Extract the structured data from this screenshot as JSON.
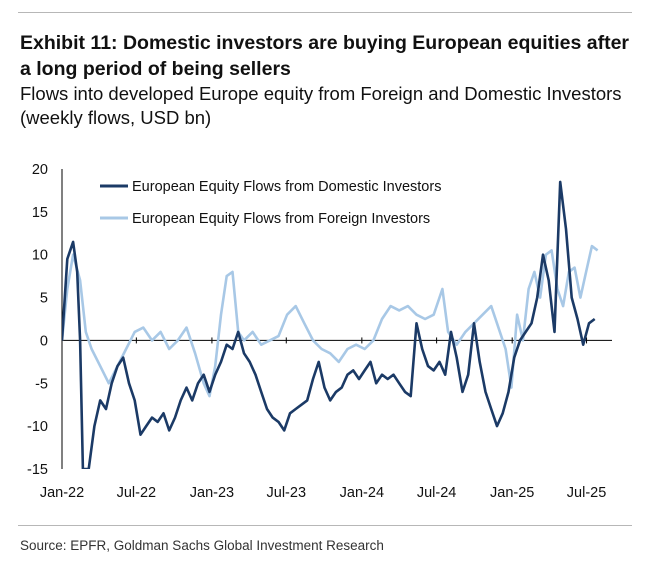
{
  "exhibit": {
    "title": "Exhibit 11: Domestic investors are buying European equities after a long period of being sellers",
    "subtitle": "Flows into developed Europe equity from Foreign and Domestic Investors (weekly flows, USD bn)",
    "source": "Source: EPFR, Goldman Sachs Global Investment Research"
  },
  "colors": {
    "domestic": "#1b3a66",
    "foreign": "#a8c8e6",
    "axis": "#000000",
    "rule": "#b7b7b7"
  },
  "chart_data": {
    "type": "line",
    "title": "",
    "xlabel": "",
    "ylabel": "",
    "ylim": [
      -15,
      20
    ],
    "yticks": [
      20,
      15,
      10,
      5,
      0,
      -5,
      -10,
      -15
    ],
    "xlim": [
      "2022-01-01",
      "2025-09-01"
    ],
    "xticks": [
      {
        "label": "Jan-22",
        "date": "2022-01-01"
      },
      {
        "label": "Jul-22",
        "date": "2022-07-01"
      },
      {
        "label": "Jan-23",
        "date": "2023-01-01"
      },
      {
        "label": "Jul-23",
        "date": "2023-07-01"
      },
      {
        "label": "Jan-24",
        "date": "2024-01-01"
      },
      {
        "label": "Jul-24",
        "date": "2024-07-01"
      },
      {
        "label": "Jan-25",
        "date": "2025-01-01"
      },
      {
        "label": "Jul-25",
        "date": "2025-07-01"
      }
    ],
    "grid": false,
    "legend": "top-left",
    "series": [
      {
        "name": "European Equity Flows from Domestic Investors",
        "points": [
          [
            "2022-01-01",
            0
          ],
          [
            "2022-01-14",
            9.5
          ],
          [
            "2022-01-28",
            11.5
          ],
          [
            "2022-02-07",
            8
          ],
          [
            "2022-02-14",
            0
          ],
          [
            "2022-02-21",
            -15
          ],
          [
            "2022-03-07",
            -15
          ],
          [
            "2022-03-21",
            -10
          ],
          [
            "2022-04-04",
            -7
          ],
          [
            "2022-04-18",
            -8
          ],
          [
            "2022-05-02",
            -5
          ],
          [
            "2022-05-16",
            -3
          ],
          [
            "2022-05-30",
            -2
          ],
          [
            "2022-06-13",
            -5
          ],
          [
            "2022-06-27",
            -7
          ],
          [
            "2022-07-11",
            -11
          ],
          [
            "2022-07-25",
            -10
          ],
          [
            "2022-08-08",
            -9
          ],
          [
            "2022-08-22",
            -9.5
          ],
          [
            "2022-09-05",
            -8.5
          ],
          [
            "2022-09-19",
            -10.5
          ],
          [
            "2022-10-03",
            -9
          ],
          [
            "2022-10-17",
            -7
          ],
          [
            "2022-10-31",
            -5.5
          ],
          [
            "2022-11-14",
            -7
          ],
          [
            "2022-11-28",
            -5
          ],
          [
            "2022-12-12",
            -4
          ],
          [
            "2022-12-26",
            -6
          ],
          [
            "2023-01-09",
            -4
          ],
          [
            "2023-01-23",
            -2.5
          ],
          [
            "2023-02-06",
            -0.5
          ],
          [
            "2023-02-20",
            -1
          ],
          [
            "2023-03-06",
            1
          ],
          [
            "2023-03-20",
            -1.5
          ],
          [
            "2023-04-03",
            -2.5
          ],
          [
            "2023-04-17",
            -4
          ],
          [
            "2023-05-01",
            -6
          ],
          [
            "2023-05-15",
            -8
          ],
          [
            "2023-05-29",
            -9
          ],
          [
            "2023-06-12",
            -9.5
          ],
          [
            "2023-06-26",
            -10.5
          ],
          [
            "2023-07-10",
            -8.5
          ],
          [
            "2023-07-24",
            -8
          ],
          [
            "2023-08-07",
            -7.5
          ],
          [
            "2023-08-21",
            -7
          ],
          [
            "2023-09-04",
            -4.5
          ],
          [
            "2023-09-18",
            -2.5
          ],
          [
            "2023-10-02",
            -5.5
          ],
          [
            "2023-10-16",
            -7
          ],
          [
            "2023-10-30",
            -6
          ],
          [
            "2023-11-13",
            -5.5
          ],
          [
            "2023-11-27",
            -4
          ],
          [
            "2023-12-11",
            -3.5
          ],
          [
            "2023-12-25",
            -4.5
          ],
          [
            "2024-01-08",
            -3.5
          ],
          [
            "2024-01-22",
            -2.5
          ],
          [
            "2024-02-05",
            -5
          ],
          [
            "2024-02-19",
            -4
          ],
          [
            "2024-03-04",
            -4.5
          ],
          [
            "2024-03-18",
            -4
          ],
          [
            "2024-04-01",
            -5
          ],
          [
            "2024-04-15",
            -6
          ],
          [
            "2024-04-29",
            -6.5
          ],
          [
            "2024-05-13",
            2
          ],
          [
            "2024-05-27",
            -1
          ],
          [
            "2024-06-10",
            -3
          ],
          [
            "2024-06-24",
            -3.5
          ],
          [
            "2024-07-08",
            -2.5
          ],
          [
            "2024-07-22",
            -4
          ],
          [
            "2024-08-05",
            1
          ],
          [
            "2024-08-19",
            -2
          ],
          [
            "2024-09-02",
            -6
          ],
          [
            "2024-09-16",
            -4
          ],
          [
            "2024-09-30",
            2
          ],
          [
            "2024-10-14",
            -2.5
          ],
          [
            "2024-10-28",
            -6
          ],
          [
            "2024-11-11",
            -8
          ],
          [
            "2024-11-25",
            -10
          ],
          [
            "2024-12-09",
            -8.5
          ],
          [
            "2024-12-23",
            -6
          ],
          [
            "2025-01-06",
            -2
          ],
          [
            "2025-01-20",
            0
          ],
          [
            "2025-02-03",
            1
          ],
          [
            "2025-02-17",
            2
          ],
          [
            "2025-03-03",
            5
          ],
          [
            "2025-03-17",
            10
          ],
          [
            "2025-03-31",
            7
          ],
          [
            "2025-04-14",
            1
          ],
          [
            "2025-04-28",
            18.5
          ],
          [
            "2025-05-12",
            13
          ],
          [
            "2025-05-26",
            5
          ],
          [
            "2025-06-09",
            2.5
          ],
          [
            "2025-06-23",
            -0.5
          ],
          [
            "2025-07-07",
            2
          ],
          [
            "2025-07-21",
            2.5
          ]
        ]
      },
      {
        "name": "European Equity Flows from Foreign Investors",
        "points": [
          [
            "2022-01-01",
            0
          ],
          [
            "2022-01-14",
            6
          ],
          [
            "2022-01-28",
            10
          ],
          [
            "2022-02-14",
            7
          ],
          [
            "2022-02-28",
            1
          ],
          [
            "2022-03-14",
            -1
          ],
          [
            "2022-04-04",
            -3
          ],
          [
            "2022-04-25",
            -5
          ],
          [
            "2022-05-16",
            -3
          ],
          [
            "2022-06-06",
            -1
          ],
          [
            "2022-06-27",
            1
          ],
          [
            "2022-07-18",
            1.5
          ],
          [
            "2022-08-08",
            0
          ],
          [
            "2022-08-29",
            1
          ],
          [
            "2022-09-19",
            -1
          ],
          [
            "2022-10-10",
            0
          ],
          [
            "2022-10-31",
            1.5
          ],
          [
            "2022-11-21",
            -1.5
          ],
          [
            "2022-12-12",
            -5
          ],
          [
            "2022-12-26",
            -6.5
          ],
          [
            "2023-01-09",
            -3
          ],
          [
            "2023-01-23",
            3
          ],
          [
            "2023-02-06",
            7.5
          ],
          [
            "2023-02-20",
            8
          ],
          [
            "2023-03-06",
            1
          ],
          [
            "2023-03-20",
            0
          ],
          [
            "2023-04-10",
            1
          ],
          [
            "2023-05-01",
            -0.5
          ],
          [
            "2023-05-22",
            0
          ],
          [
            "2023-06-12",
            0.5
          ],
          [
            "2023-07-03",
            3
          ],
          [
            "2023-07-24",
            4
          ],
          [
            "2023-08-14",
            2
          ],
          [
            "2023-09-04",
            0
          ],
          [
            "2023-09-25",
            -1
          ],
          [
            "2023-10-16",
            -1.5
          ],
          [
            "2023-11-06",
            -2.5
          ],
          [
            "2023-11-27",
            -1
          ],
          [
            "2023-12-18",
            -0.5
          ],
          [
            "2024-01-08",
            -1
          ],
          [
            "2024-01-29",
            0
          ],
          [
            "2024-02-19",
            2.5
          ],
          [
            "2024-03-11",
            4
          ],
          [
            "2024-04-01",
            3.5
          ],
          [
            "2024-04-22",
            4
          ],
          [
            "2024-05-13",
            3
          ],
          [
            "2024-06-03",
            2.5
          ],
          [
            "2024-06-24",
            3
          ],
          [
            "2024-07-15",
            6
          ],
          [
            "2024-07-29",
            1
          ],
          [
            "2024-08-19",
            -0.5
          ],
          [
            "2024-09-09",
            1
          ],
          [
            "2024-09-30",
            2
          ],
          [
            "2024-10-21",
            3
          ],
          [
            "2024-11-11",
            4
          ],
          [
            "2024-11-25",
            2
          ],
          [
            "2024-12-16",
            -1
          ],
          [
            "2024-12-30",
            -5.5
          ],
          [
            "2025-01-13",
            3
          ],
          [
            "2025-01-27",
            0
          ],
          [
            "2025-02-10",
            6
          ],
          [
            "2025-02-24",
            8
          ],
          [
            "2025-03-10",
            5
          ],
          [
            "2025-03-24",
            10
          ],
          [
            "2025-04-07",
            10.5
          ],
          [
            "2025-04-21",
            6
          ],
          [
            "2025-05-05",
            4
          ],
          [
            "2025-05-19",
            8
          ],
          [
            "2025-06-02",
            8.5
          ],
          [
            "2025-06-16",
            5
          ],
          [
            "2025-06-30",
            8
          ],
          [
            "2025-07-14",
            11
          ],
          [
            "2025-07-28",
            10.5
          ]
        ]
      }
    ]
  }
}
